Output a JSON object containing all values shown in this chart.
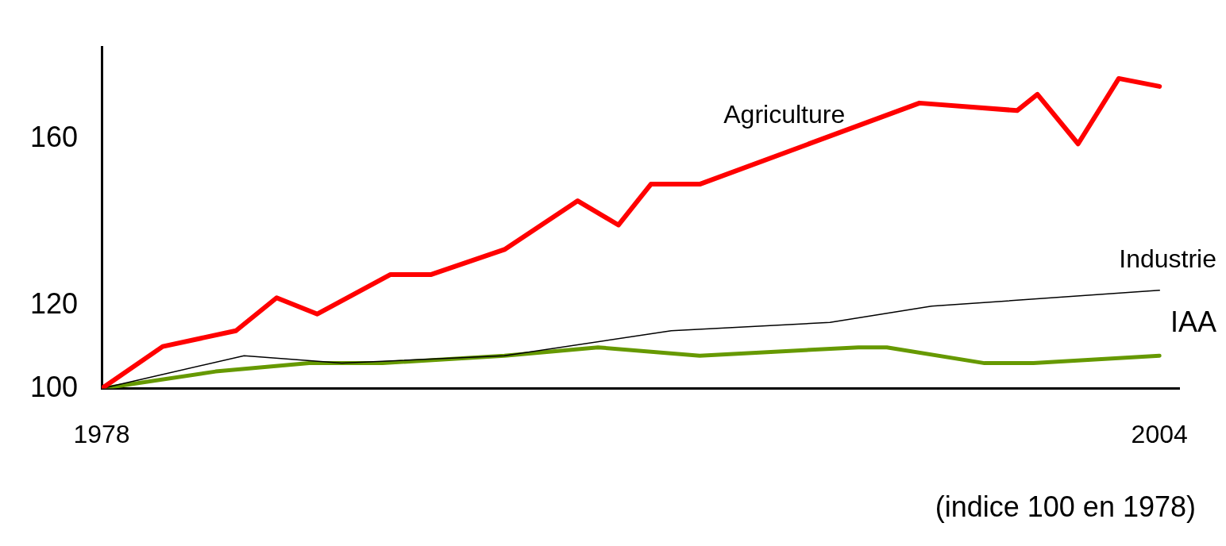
{
  "chart_data": {
    "type": "line",
    "xlim": [
      1978,
      2004.5
    ],
    "xticks": [
      1978,
      2004
    ],
    "ylim": [
      100,
      182
    ],
    "yticks": [
      100,
      120,
      160
    ],
    "grid": false,
    "legend": false,
    "marker": "none",
    "line_style": "solid",
    "annotations": [
      "(indice 100 en 1978)"
    ],
    "series": [
      {
        "name": "Agriculture",
        "color": "#ff0000",
        "x": [
          1978,
          1979.5,
          1981.3,
          1982.3,
          1983.3,
          1985.1,
          1986.1,
          1987.9,
          1989.7,
          1990.7,
          1991.5,
          1992.7,
          1998.1,
          2000.5,
          2001,
          2002,
          2003,
          2004
        ],
        "values": [
          100,
          110.1,
          113.9,
          121.8,
          117.9,
          127.4,
          127.4,
          133.4,
          145.1,
          139.3,
          149.1,
          149.1,
          168.6,
          166.8,
          170.7,
          158.8,
          174.5,
          172.6
        ]
      },
      {
        "name": "Industrie",
        "color": "#000000",
        "x": [
          1978,
          1981.5,
          1983.9,
          1987.9,
          1992,
          1995.9,
          1998.4,
          2004
        ],
        "values": [
          100,
          107.9,
          106.1,
          107.9,
          113.9,
          115.9,
          119.8,
          123.6
        ]
      },
      {
        "name": "IAA",
        "color": "#669900",
        "x": [
          1978,
          1980.8,
          1983.1,
          1984.9,
          1987.9,
          1990.2,
          1992.7,
          1996.6,
          1997.3,
          1999.7,
          2000.9,
          2004
        ],
        "values": [
          100,
          104.1,
          106.1,
          106.1,
          107.9,
          109.9,
          107.9,
          109.9,
          109.9,
          106.1,
          106.1,
          107.9
        ]
      }
    ]
  }
}
